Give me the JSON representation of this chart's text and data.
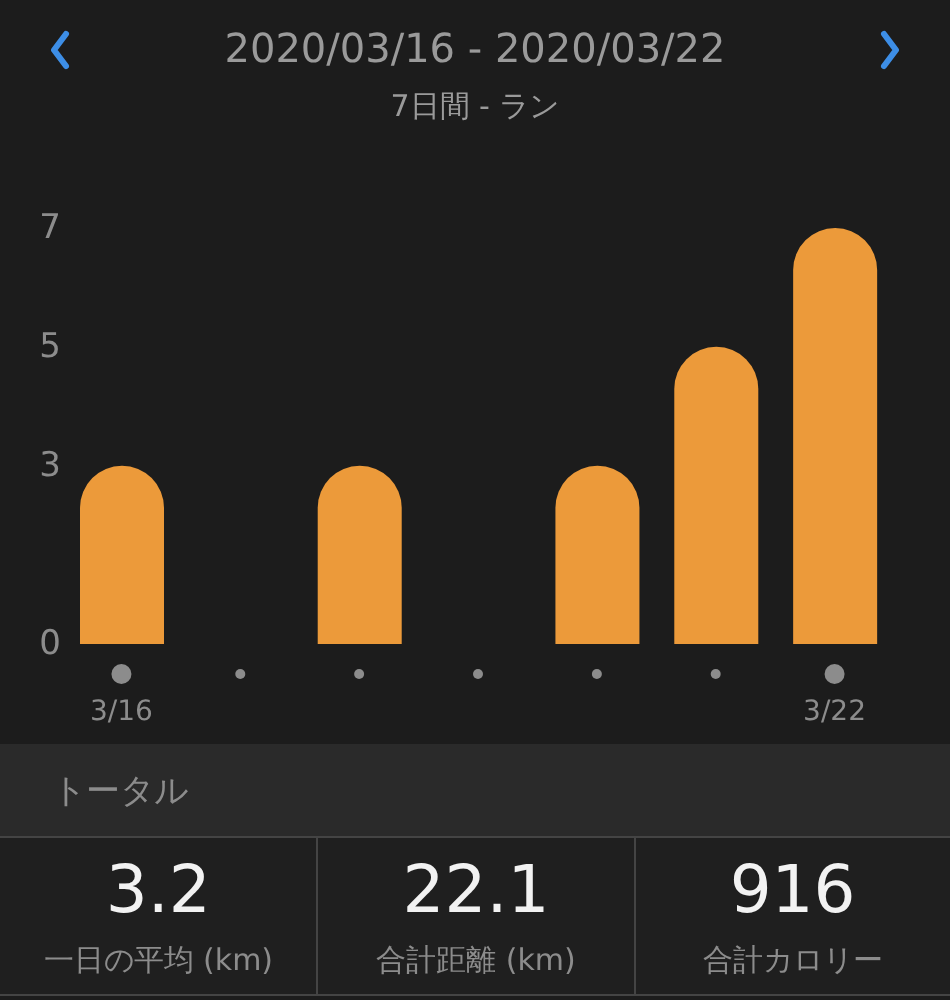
{
  "chart_data": [
    {
      "type": "bar",
      "title": "2020/03/16 - 2020/03/22",
      "subtitle": "7日間 - ラン",
      "categories": [
        "3/16",
        null,
        null,
        null,
        null,
        null,
        "3/22"
      ],
      "values": [
        3,
        null,
        3,
        null,
        3,
        5,
        7
      ],
      "color": "#ec9a3a",
      "ylim": [
        0,
        7
      ],
      "yticks": [
        0,
        3,
        5,
        7
      ]
    },
    {
      "type": "other",
      "title": "トータル",
      "annotations": [
        "3.2",
        "一日の平均 (km)",
        "22.1",
        "合計距離 (km)",
        "916",
        "合計カロリー"
      ]
    }
  ]
}
